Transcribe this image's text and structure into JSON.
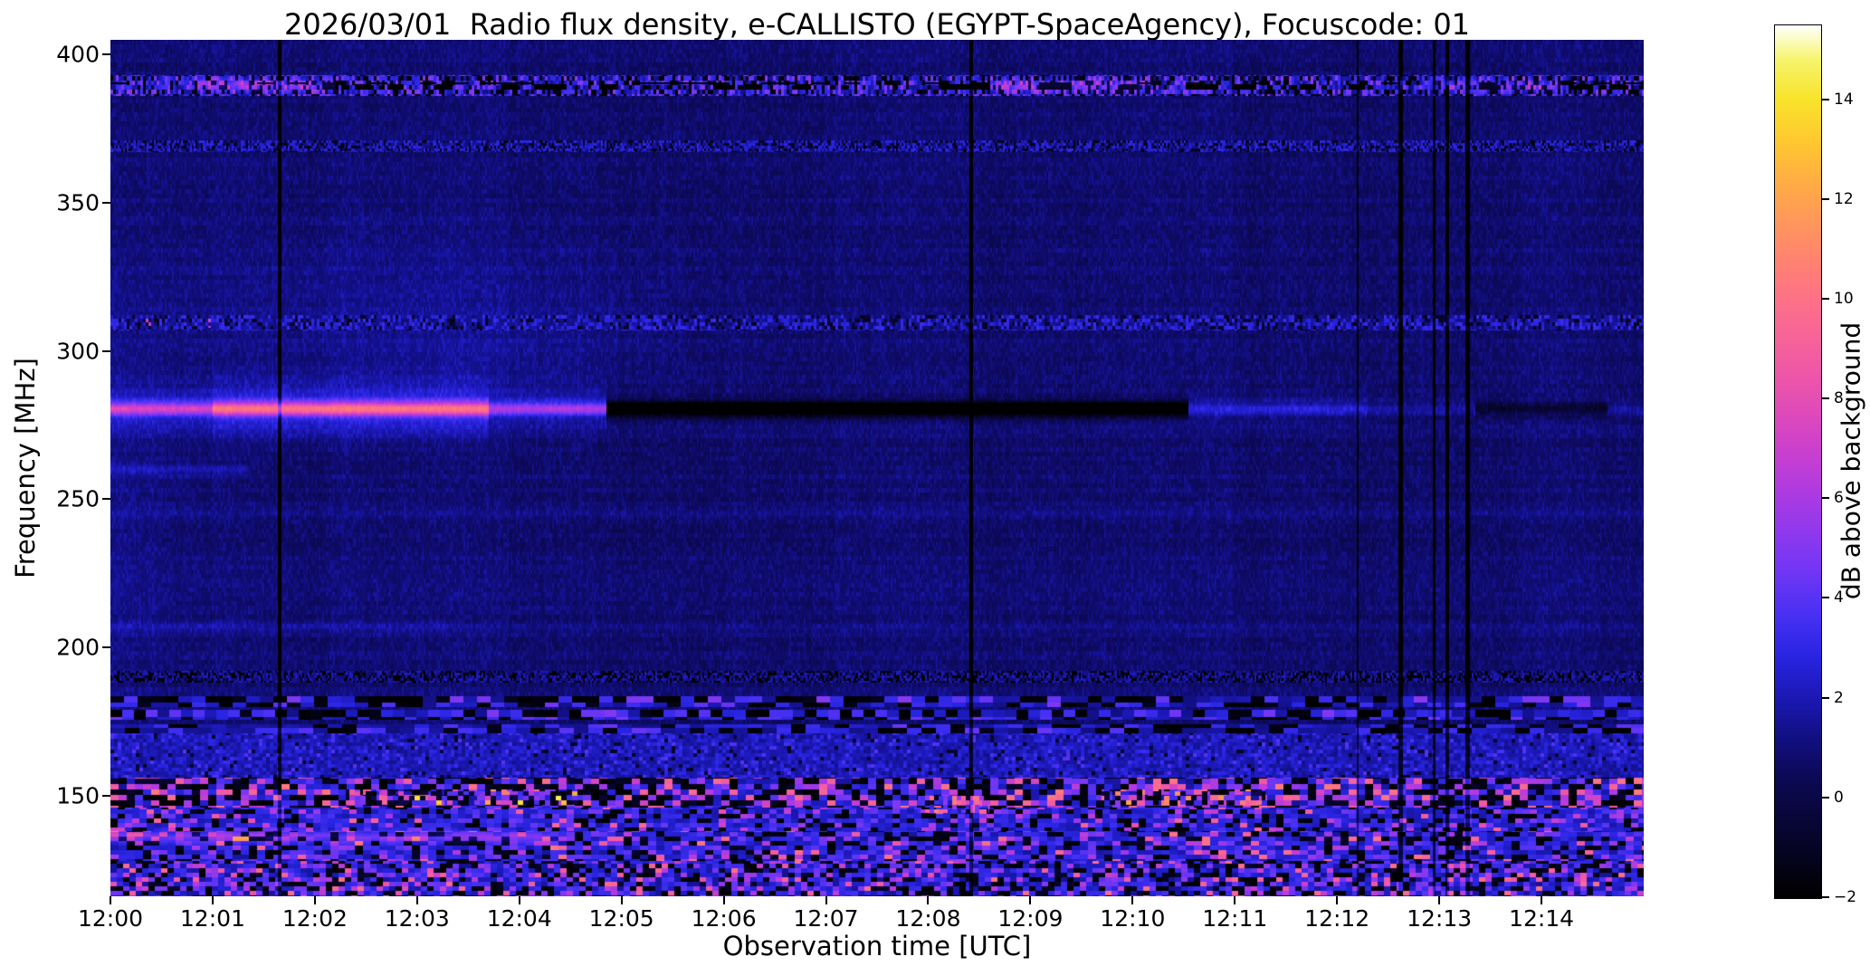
{
  "chart_data": {
    "type": "heatmap",
    "title": "2026/03/01  Radio flux density, e-CALLISTO (EGYPT-SpaceAgency), Focuscode: 01",
    "xlabel": "Observation time [UTC]",
    "ylabel": "Frequency [MHz]",
    "x_ticks": [
      "12:00",
      "12:01",
      "12:02",
      "12:03",
      "12:04",
      "12:05",
      "12:06",
      "12:07",
      "12:08",
      "12:09",
      "12:10",
      "12:11",
      "12:12",
      "12:13",
      "12:14"
    ],
    "x_range_minutes": [
      0,
      15
    ],
    "y_ticks": [
      400,
      350,
      300,
      250,
      200,
      150
    ],
    "ylim": [
      116,
      405
    ],
    "grid": false,
    "legend": "colorbar-right",
    "colorbar": {
      "label": "dB above background",
      "vmin": -2,
      "vmax": 15.5,
      "tick_values": [
        14,
        12,
        10,
        8,
        6,
        4,
        2,
        0,
        -2
      ],
      "tick_labels": [
        "14",
        "12",
        "10",
        "8",
        "6",
        "4",
        "2",
        "0",
        "−2"
      ]
    },
    "colormap_stops": [
      [
        -2,
        "#000000"
      ],
      [
        -1.2,
        "#05041e"
      ],
      [
        -0.4,
        "#090638"
      ],
      [
        0.4,
        "#0c0955"
      ],
      [
        1.2,
        "#120f83"
      ],
      [
        2,
        "#1b18b4"
      ],
      [
        2.8,
        "#2824e0"
      ],
      [
        3.6,
        "#4530f2"
      ],
      [
        4.4,
        "#6b35f5"
      ],
      [
        5.2,
        "#8b38f0"
      ],
      [
        6,
        "#a93ae4"
      ],
      [
        6.8,
        "#c53ed3"
      ],
      [
        7.6,
        "#dc48bd"
      ],
      [
        8.4,
        "#ec55aa"
      ],
      [
        9.2,
        "#f66399"
      ],
      [
        10,
        "#fd7187"
      ],
      [
        10.8,
        "#ff8370"
      ],
      [
        11.6,
        "#ff985a"
      ],
      [
        12.4,
        "#ffae43"
      ],
      [
        13.2,
        "#fec92e"
      ],
      [
        14,
        "#f9e32b"
      ],
      [
        14.8,
        "#f6f46c"
      ],
      [
        15.2,
        "#fbfbc1"
      ],
      [
        15.5,
        "#ffffff"
      ]
    ],
    "background_db": 0.9,
    "features": {
      "horizontal_lines": [
        {
          "f": 280.5,
          "t0": 0,
          "t1": 1.0,
          "amp": 4.8,
          "sigma": 1.5,
          "glow": 1.6,
          "gs": 5
        },
        {
          "f": 280.5,
          "t0": 1.0,
          "t1": 3.7,
          "amp": 7.0,
          "sigma": 1.6,
          "glow": 2.2,
          "gs": 6
        },
        {
          "f": 280.5,
          "t0": 3.7,
          "t1": 4.85,
          "amp": 4.0,
          "sigma": 1.4,
          "glow": 1.2,
          "gs": 5
        },
        {
          "f": 280.5,
          "t0": 4.85,
          "t1": 10.55,
          "amp": -5.0,
          "sigma": 1.7,
          "glow": 0,
          "gs": 1
        },
        {
          "f": 280.5,
          "t0": 10.55,
          "t1": 12.3,
          "amp": 1.5,
          "sigma": 1.4,
          "glow": 0.4,
          "gs": 4
        },
        {
          "f": 280.5,
          "t0": 12.3,
          "t1": 13.35,
          "amp": 0.9,
          "sigma": 1.4,
          "glow": 0,
          "gs": 1
        },
        {
          "f": 280.5,
          "t0": 13.35,
          "t1": 14.65,
          "amp": -1.6,
          "sigma": 1.5,
          "glow": 0,
          "gs": 1
        },
        {
          "f": 280.5,
          "t0": 14.65,
          "t1": 15,
          "amp": 0.8,
          "sigma": 1.4,
          "glow": 0,
          "gs": 1
        },
        {
          "f": 260,
          "t0": 0,
          "t1": 1.35,
          "amp": 1.1,
          "sigma": 1.2,
          "glow": 0,
          "gs": 1
        },
        {
          "f": 245,
          "t0": 0,
          "t1": 15,
          "amp": 0.5,
          "sigma": 1.1,
          "glow": 0,
          "gs": 1
        },
        {
          "f": 207,
          "t0": 0,
          "t1": 3.3,
          "amp": 0.8,
          "sigma": 1.4,
          "glow": 0,
          "gs": 1
        },
        {
          "f": 207,
          "t0": 3.3,
          "t1": 15,
          "amp": 0.4,
          "sigma": 1.2,
          "glow": 0,
          "gs": 1
        },
        {
          "f": 136,
          "t0": 0,
          "t1": 4.3,
          "amp": 2.2,
          "sigma": 1.3,
          "glow": 0,
          "gs": 1
        },
        {
          "f": 389.5,
          "t0": 0.85,
          "t1": 2.2,
          "amp": 2.5,
          "sigma": 1.5,
          "glow": 0,
          "gs": 1
        },
        {
          "f": 389.5,
          "t0": 8.6,
          "t1": 10.2,
          "amp": 2.0,
          "sigma": 1.5,
          "glow": 0,
          "gs": 1
        },
        {
          "f": 389.5,
          "t0": 13.0,
          "t1": 14.2,
          "amp": 1.8,
          "sigma": 1.5,
          "glow": 0,
          "gs": 1
        }
      ],
      "noise_bands": [
        {
          "f0": 386,
          "f1": 393,
          "cw": 3,
          "ch": 5,
          "seed": 21,
          "levels": [
            [
              0.3,
              -2.2
            ],
            [
              0.55,
              1.1
            ],
            [
              0.85,
              2.6
            ],
            [
              1,
              4.2
            ]
          ],
          "jitter": 1.2
        },
        {
          "f0": 388.3,
          "f1": 390.6,
          "cw": 18,
          "ch": 7,
          "seed": 22,
          "levels": [
            [
              0.28,
              -2.5
            ],
            [
              1,
              null
            ]
          ],
          "jitter": 0
        },
        {
          "f0": 367,
          "f1": 371,
          "cw": 2,
          "ch": 3,
          "seed": 23,
          "levels": [
            [
              0.28,
              -1.6
            ],
            [
              0.66,
              0.9
            ],
            [
              1,
              2.3
            ]
          ],
          "jitter": 0.8
        },
        {
          "f0": 307,
          "f1": 312,
          "cw": 3,
          "ch": 4,
          "seed": 24,
          "levels": [
            [
              0.2,
              -1.3
            ],
            [
              0.6,
              0.9
            ],
            [
              0.95,
              2.4
            ],
            [
              1,
              null
            ]
          ],
          "jitter": 1.0
        },
        {
          "f0": 308,
          "f1": 311,
          "t0": 0,
          "t1": 1.4,
          "cw": 3,
          "ch": 4,
          "seed": 25,
          "levels": [
            [
              0.06,
              6.2
            ],
            [
              1,
              null
            ]
          ],
          "jitter": 1.5
        },
        {
          "f0": 188,
          "f1": 192,
          "cw": 2,
          "ch": 3,
          "seed": 26,
          "levels": [
            [
              0.36,
              -2.2
            ],
            [
              0.75,
              0.8
            ],
            [
              1,
              1.8
            ]
          ],
          "jitter": 0.6
        },
        {
          "f0": 180,
          "f1": 183.5,
          "cw": 15,
          "ch": 12,
          "seed": 27,
          "levels": [
            [
              0.3,
              -2.4
            ],
            [
              0.6,
              1.2
            ],
            [
              0.88,
              2.6
            ],
            [
              1,
              4.0
            ]
          ],
          "jitter": 1.2
        },
        {
          "f0": 175.5,
          "f1": 178.8,
          "cw": 13,
          "ch": 11,
          "seed": 28,
          "levels": [
            [
              0.32,
              -2.4
            ],
            [
              0.62,
              1.2
            ],
            [
              0.9,
              2.6
            ],
            [
              1,
              3.8
            ]
          ],
          "jitter": 1.2
        },
        {
          "f0": 171,
          "f1": 174,
          "cw": 16,
          "ch": 10,
          "seed": 29,
          "levels": [
            [
              0.28,
              -2.3
            ],
            [
              0.62,
              1.1
            ],
            [
              0.9,
              2.4
            ],
            [
              1,
              3.6
            ]
          ],
          "jitter": 1.1
        },
        {
          "f0": 156,
          "f1": 171,
          "cw": 4,
          "ch": 4,
          "seed": 30,
          "levels": [
            [
              0.05,
              -1.2
            ],
            [
              0.55,
              1.3
            ],
            [
              0.92,
              2.1
            ],
            [
              1,
              3.1
            ]
          ],
          "jitter": 0.9
        },
        {
          "f0": 146,
          "f1": 156,
          "cw": 9,
          "ch": 6,
          "seed": 31,
          "levels": [
            [
              0.4,
              -2.6
            ],
            [
              0.6,
              1.5
            ],
            [
              0.78,
              3.2
            ],
            [
              0.92,
              5.5
            ],
            [
              1,
              8.5
            ]
          ],
          "jitter": 2.0
        },
        {
          "f0": 138,
          "f1": 146,
          "cw": 8,
          "ch": 5,
          "seed": 32,
          "levels": [
            [
              0.18,
              -2.6
            ],
            [
              0.72,
              1.8
            ],
            [
              0.9,
              3.2
            ],
            [
              0.97,
              5.5
            ],
            [
              1,
              8.0
            ]
          ],
          "jitter": 1.5
        },
        {
          "f0": 128,
          "f1": 138,
          "cw": 9,
          "ch": 5,
          "seed": 33,
          "levels": [
            [
              0.22,
              -2.6
            ],
            [
              0.65,
              1.6
            ],
            [
              0.86,
              3.0
            ],
            [
              0.96,
              5.0
            ],
            [
              1,
              8.5
            ]
          ],
          "jitter": 1.8
        },
        {
          "f0": 116,
          "f1": 128,
          "cw": 7,
          "ch": 5,
          "seed": 34,
          "levels": [
            [
              0.28,
              -2.6
            ],
            [
              0.62,
              1.4
            ],
            [
              0.84,
              3.0
            ],
            [
              0.95,
              5.0
            ],
            [
              1,
              8.0
            ]
          ],
          "jitter": 2.0
        },
        {
          "f0": 147,
          "f1": 152,
          "t0": 2.3,
          "t1": 4.6,
          "cw": 6,
          "ch": 5,
          "seed": 35,
          "levels": [
            [
              0.45,
              null
            ],
            [
              0.7,
              -2.2
            ],
            [
              0.85,
              3.0
            ],
            [
              0.94,
              7.0
            ],
            [
              1,
              12.0
            ]
          ],
          "jitter": 2.5
        },
        {
          "f0": 147,
          "f1": 152,
          "t0": 9.7,
          "t1": 11.3,
          "cw": 6,
          "ch": 5,
          "seed": 36,
          "levels": [
            [
              0.5,
              null
            ],
            [
              0.75,
              -2.2
            ],
            [
              0.9,
              4.0
            ],
            [
              1,
              9.5
            ]
          ],
          "jitter": 2.5
        },
        {
          "f0": 144,
          "f1": 150,
          "t0": 7.9,
          "t1": 8.6,
          "cw": 5,
          "ch": 5,
          "seed": 37,
          "levels": [
            [
              0.55,
              null
            ],
            [
              0.8,
              3.0
            ],
            [
              1,
              8.5
            ]
          ],
          "jitter": 3.0
        }
      ],
      "vertical_lines": [
        {
          "t": 1.66,
          "w": 0.035,
          "amp": -3.2
        },
        {
          "t": 8.42,
          "w": 0.035,
          "amp": -3.2
        },
        {
          "t": 12.2,
          "w": 0.022,
          "amp": -2.6
        },
        {
          "t": 12.62,
          "w": 0.045,
          "amp": -3.2
        },
        {
          "t": 12.95,
          "w": 0.03,
          "amp": -3.0
        },
        {
          "t": 13.08,
          "w": 0.03,
          "amp": -3.0
        },
        {
          "t": 13.28,
          "w": 0.04,
          "amp": -3.2
        }
      ],
      "blobs": [
        {
          "t": 3.0,
          "f": 316,
          "st": 1.7,
          "sf": 17,
          "amp": 0.5
        },
        {
          "t": 3.6,
          "f": 298,
          "st": 1.1,
          "sf": 9,
          "amp": 0.3
        },
        {
          "t": 0.12,
          "f": 250,
          "st": 0.3,
          "sf": 80,
          "amp": 0.55
        }
      ]
    }
  }
}
